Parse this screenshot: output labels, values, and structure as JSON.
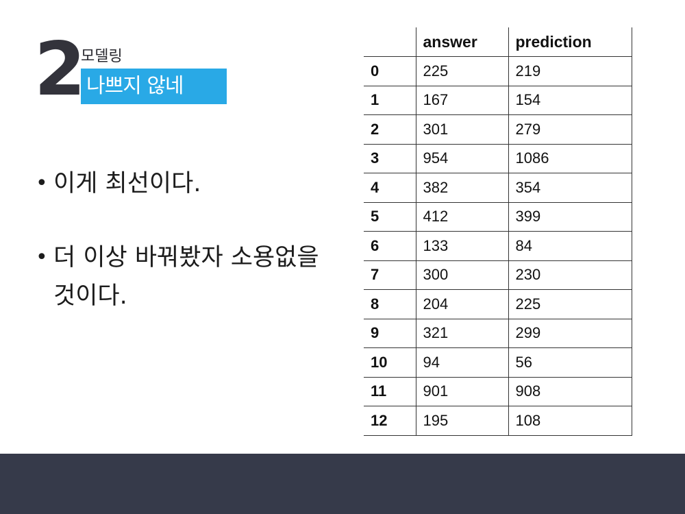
{
  "section": {
    "number": "2",
    "subtitle": "모델링",
    "title": "나쁘지 않네"
  },
  "bullets": [
    {
      "text": "이게 최선이다."
    },
    {
      "text": "더 이상 바꿔봤자 소용없을 것이다."
    }
  ],
  "table": {
    "headers": [
      "",
      "answer",
      "prediction"
    ],
    "rows": [
      {
        "index": "0",
        "answer": "225",
        "prediction": "219"
      },
      {
        "index": "1",
        "answer": "167",
        "prediction": "154"
      },
      {
        "index": "2",
        "answer": "301",
        "prediction": "279"
      },
      {
        "index": "3",
        "answer": "954",
        "prediction": "1086"
      },
      {
        "index": "4",
        "answer": "382",
        "prediction": "354"
      },
      {
        "index": "5",
        "answer": "412",
        "prediction": "399"
      },
      {
        "index": "6",
        "answer": "133",
        "prediction": "84"
      },
      {
        "index": "7",
        "answer": "300",
        "prediction": "230"
      },
      {
        "index": "8",
        "answer": "204",
        "prediction": "225"
      },
      {
        "index": "9",
        "answer": "321",
        "prediction": "299"
      },
      {
        "index": "10",
        "answer": "94",
        "prediction": "56"
      },
      {
        "index": "11",
        "answer": "901",
        "prediction": "908"
      },
      {
        "index": "12",
        "answer": "195",
        "prediction": "108"
      }
    ]
  },
  "colors": {
    "title_bg": "#29a9e6",
    "number": "#33333b",
    "bottom_bar": "#363a4a"
  }
}
